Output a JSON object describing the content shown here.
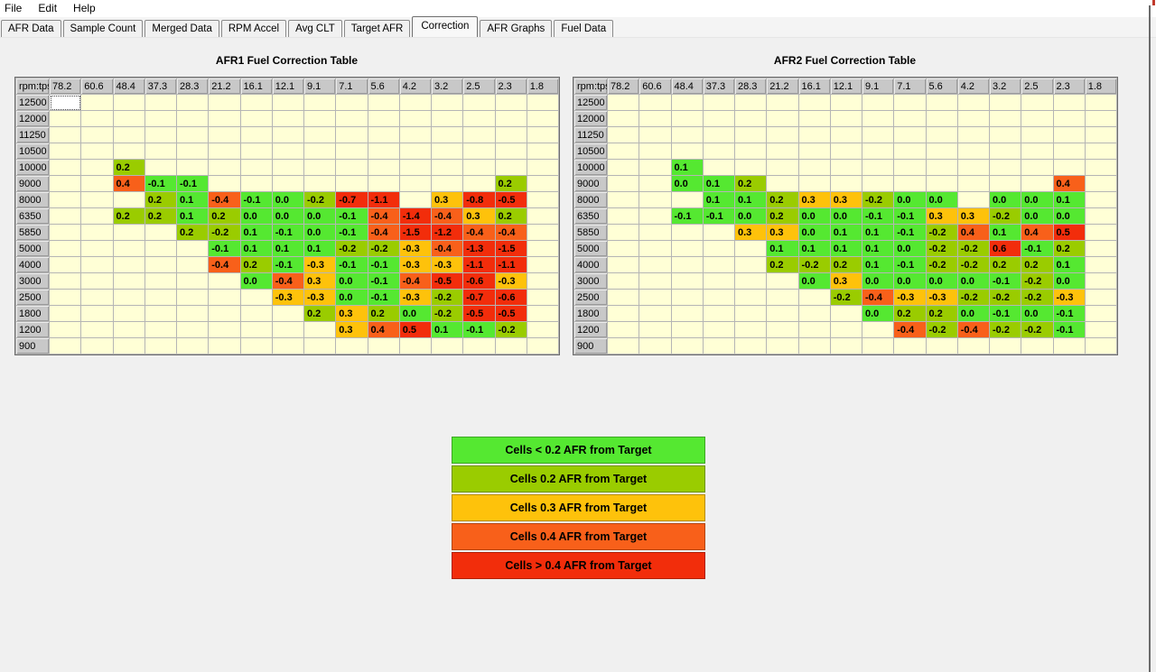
{
  "menu_bar": {
    "items": [
      "File",
      "Edit",
      "Help"
    ]
  },
  "tab_bar": {
    "tabs": [
      "AFR Data",
      "Sample Count",
      "Merged Data",
      "RPM Accel",
      "Avg CLT",
      "Target AFR",
      "Correction",
      "AFR Graphs",
      "Fuel Data"
    ],
    "active_tab": "Correction"
  },
  "colors": {
    "empty_cell": "#ffffd6",
    "band_lt_02": "#55e831",
    "band_02": "#9acc00",
    "band_03": "#fec20b",
    "band_04": "#f8601a",
    "band_gt_04": "#f22d0b"
  },
  "tables": [
    {
      "title": "AFR1 Fuel Correction Table",
      "corner": "rpm:tps",
      "columns": [
        "78.2",
        "60.6",
        "48.4",
        "37.3",
        "28.3",
        "21.2",
        "16.1",
        "12.1",
        "9.1",
        "7.1",
        "5.6",
        "4.2",
        "3.2",
        "2.5",
        "2.3",
        "1.8"
      ],
      "rows": [
        "12500",
        "12000",
        "11250",
        "10500",
        "10000",
        "9000",
        "8000",
        "6350",
        "5850",
        "5000",
        "4000",
        "3000",
        "2500",
        "1800",
        "1200",
        "900"
      ],
      "selected_cell": {
        "row": "12500",
        "col": "78.2"
      },
      "values": {
        "10000": {
          "48.4": "0.2"
        },
        "9000": {
          "48.4": "0.4",
          "37.3": "-0.1",
          "28.3": "-0.1",
          "2.3": "0.2"
        },
        "8000": {
          "37.3": "0.2",
          "28.3": "0.1",
          "21.2": "-0.4",
          "16.1": "-0.1",
          "12.1": "0.0",
          "9.1": "-0.2",
          "7.1": "-0.7",
          "5.6": "-1.1",
          "3.2": "0.3",
          "2.5": "-0.8",
          "2.3": "-0.5"
        },
        "6350": {
          "48.4": "0.2",
          "37.3": "0.2",
          "28.3": "0.1",
          "21.2": "0.2",
          "16.1": "0.0",
          "12.1": "0.0",
          "9.1": "0.0",
          "7.1": "-0.1",
          "5.6": "-0.4",
          "4.2": "-1.4",
          "3.2": "-0.4",
          "2.5": "0.3",
          "2.3": "0.2"
        },
        "5850": {
          "28.3": "0.2",
          "21.2": "-0.2",
          "16.1": "0.1",
          "12.1": "-0.1",
          "9.1": "0.0",
          "7.1": "-0.1",
          "5.6": "-0.4",
          "4.2": "-1.5",
          "3.2": "-1.2",
          "2.5": "-0.4",
          "2.3": "-0.4"
        },
        "5000": {
          "21.2": "-0.1",
          "16.1": "0.1",
          "12.1": "0.1",
          "9.1": "0.1",
          "7.1": "-0.2",
          "5.6": "-0.2",
          "4.2": "-0.3",
          "3.2": "-0.4",
          "2.5": "-1.3",
          "2.3": "-1.5"
        },
        "4000": {
          "21.2": "-0.4",
          "16.1": "0.2",
          "12.1": "-0.1",
          "9.1": "-0.3",
          "7.1": "-0.1",
          "5.6": "-0.1",
          "4.2": "-0.3",
          "3.2": "-0.3",
          "2.5": "-1.1",
          "2.3": "-1.1"
        },
        "3000": {
          "16.1": "0.0",
          "12.1": "-0.4",
          "9.1": "0.3",
          "7.1": "0.0",
          "5.6": "-0.1",
          "4.2": "-0.4",
          "3.2": "-0.5",
          "2.5": "-0.6",
          "2.3": "-0.3"
        },
        "2500": {
          "12.1": "-0.3",
          "9.1": "-0.3",
          "7.1": "0.0",
          "5.6": "-0.1",
          "4.2": "-0.3",
          "3.2": "-0.2",
          "2.5": "-0.7",
          "2.3": "-0.6"
        },
        "1800": {
          "9.1": "0.2",
          "7.1": "0.3",
          "5.6": "0.2",
          "4.2": "0.0",
          "3.2": "-0.2",
          "2.5": "-0.5",
          "2.3": "-0.5"
        },
        "1200": {
          "7.1": "0.3",
          "5.6": "0.4",
          "4.2": "0.5",
          "3.2": "0.1",
          "2.5": "-0.1",
          "2.3": "-0.2"
        }
      }
    },
    {
      "title": "AFR2 Fuel Correction Table",
      "corner": "rpm:tps",
      "columns": [
        "78.2",
        "60.6",
        "48.4",
        "37.3",
        "28.3",
        "21.2",
        "16.1",
        "12.1",
        "9.1",
        "7.1",
        "5.6",
        "4.2",
        "3.2",
        "2.5",
        "2.3",
        "1.8"
      ],
      "rows": [
        "12500",
        "12000",
        "11250",
        "10500",
        "10000",
        "9000",
        "8000",
        "6350",
        "5850",
        "5000",
        "4000",
        "3000",
        "2500",
        "1800",
        "1200",
        "900"
      ],
      "selected_cell": null,
      "values": {
        "10000": {
          "48.4": "0.1"
        },
        "9000": {
          "48.4": "0.0",
          "37.3": "0.1",
          "28.3": "0.2",
          "2.3": "0.4"
        },
        "8000": {
          "37.3": "0.1",
          "28.3": "0.1",
          "21.2": "0.2",
          "16.1": "0.3",
          "12.1": "0.3",
          "9.1": "-0.2",
          "7.1": "0.0",
          "5.6": "0.0",
          "3.2": "0.0",
          "2.5": "0.0",
          "2.3": "0.1"
        },
        "6350": {
          "48.4": "-0.1",
          "37.3": "-0.1",
          "28.3": "0.0",
          "21.2": "0.2",
          "16.1": "0.0",
          "12.1": "0.0",
          "9.1": "-0.1",
          "7.1": "-0.1",
          "5.6": "0.3",
          "4.2": "0.3",
          "3.2": "-0.2",
          "2.5": "0.0",
          "2.3": "0.0"
        },
        "5850": {
          "28.3": "0.3",
          "21.2": "0.3",
          "16.1": "0.0",
          "12.1": "0.1",
          "9.1": "0.1",
          "7.1": "-0.1",
          "5.6": "-0.2",
          "4.2": "0.4",
          "3.2": "0.1",
          "2.5": "0.4",
          "2.3": "0.5"
        },
        "5000": {
          "21.2": "0.1",
          "16.1": "0.1",
          "12.1": "0.1",
          "9.1": "0.1",
          "7.1": "0.0",
          "5.6": "-0.2",
          "4.2": "-0.2",
          "3.2": "0.6",
          "2.5": "-0.1",
          "2.3": "0.2"
        },
        "4000": {
          "21.2": "0.2",
          "16.1": "-0.2",
          "12.1": "0.2",
          "9.1": "0.1",
          "7.1": "-0.1",
          "5.6": "-0.2",
          "4.2": "-0.2",
          "3.2": "0.2",
          "2.5": "0.2",
          "2.3": "0.1"
        },
        "3000": {
          "16.1": "0.0",
          "12.1": "0.3",
          "9.1": "0.0",
          "7.1": "0.0",
          "5.6": "0.0",
          "4.2": "0.0",
          "3.2": "-0.1",
          "2.5": "-0.2",
          "2.3": "0.0"
        },
        "2500": {
          "12.1": "-0.2",
          "9.1": "-0.4",
          "7.1": "-0.3",
          "5.6": "-0.3",
          "4.2": "-0.2",
          "3.2": "-0.2",
          "2.5": "-0.2",
          "2.3": "-0.3"
        },
        "1800": {
          "9.1": "0.0",
          "7.1": "0.2",
          "5.6": "0.2",
          "4.2": "0.0",
          "3.2": "-0.1",
          "2.5": "0.0",
          "2.3": "-0.1"
        },
        "1200": {
          "7.1": "-0.4",
          "5.6": "-0.2",
          "4.2": "-0.4",
          "3.2": "-0.2",
          "2.5": "-0.2",
          "2.3": "-0.1"
        }
      }
    }
  ],
  "legend": {
    "items": [
      {
        "label": "Cells < 0.2 AFR from Target",
        "color": "#55e831"
      },
      {
        "label": "Cells 0.2 AFR from Target",
        "color": "#9acc00"
      },
      {
        "label": "Cells 0.3 AFR from Target",
        "color": "#fec20b"
      },
      {
        "label": "Cells 0.4 AFR from Target",
        "color": "#f8601a"
      },
      {
        "label": "Cells > 0.4 AFR from Target",
        "color": "#f22d0b"
      }
    ]
  }
}
